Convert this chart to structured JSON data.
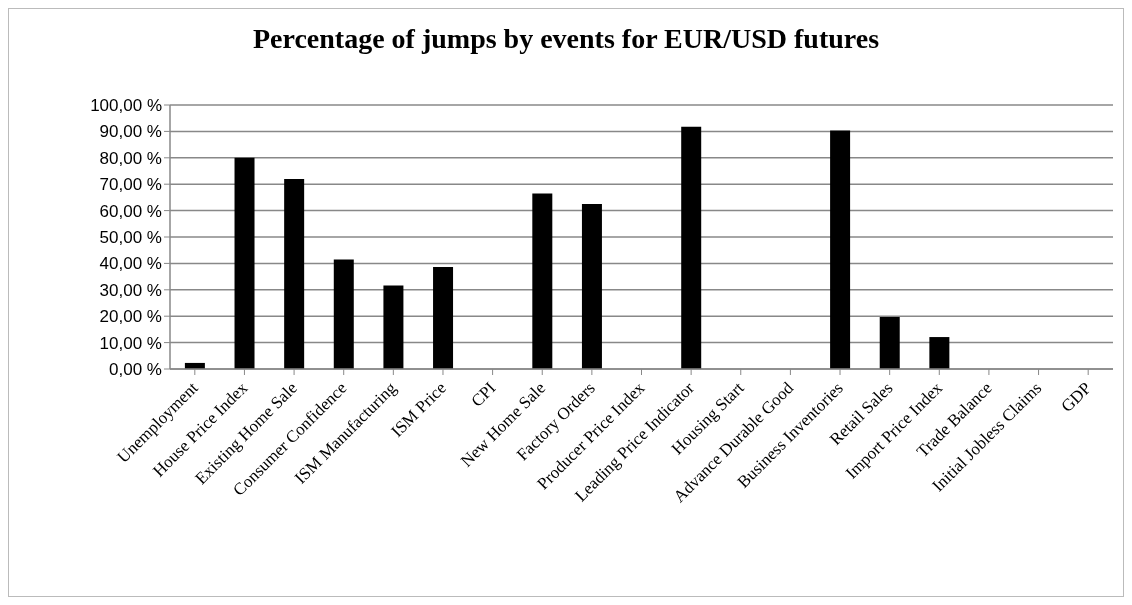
{
  "chart_data": {
    "type": "bar",
    "title": "Percentage of jumps by events for EUR/USD futures",
    "categories": [
      "Unemployment",
      "House Price Index",
      "Existing Home Sale",
      "Consumer Confidence",
      "ISM Manufacturing",
      "ISM Price",
      "CPI",
      "New Home Sale",
      "Factory Orders",
      "Producer Price Index",
      "Leading Price Indicator",
      "Housing Start",
      "Advance Durable Good",
      "Business Inventories",
      "Retail Sales",
      "Import Price Index",
      "Trade Balance",
      "Initial Jobless Claims",
      "GDP"
    ],
    "values": [
      2.3,
      80,
      72,
      41.5,
      31.6,
      38.6,
      0,
      66.5,
      62.5,
      0,
      91.8,
      0,
      0,
      90.3,
      19.7,
      12.1,
      0,
      0,
      0
    ],
    "color": "#000000",
    "ylim": [
      0,
      100
    ],
    "yticks": [
      {
        "value": 0,
        "label": "0,00 %"
      },
      {
        "value": 10,
        "label": "10,00 %"
      },
      {
        "value": 20,
        "label": "20,00 %"
      },
      {
        "value": 30,
        "label": "30,00 %"
      },
      {
        "value": 40,
        "label": "40,00 %"
      },
      {
        "value": 50,
        "label": "50,00 %"
      },
      {
        "value": 60,
        "label": "60,00 %"
      },
      {
        "value": 70,
        "label": "70,00 %"
      },
      {
        "value": 80,
        "label": "80,00 %"
      },
      {
        "value": 90,
        "label": "90,00 %"
      },
      {
        "value": 100,
        "label": "100,00 %"
      }
    ],
    "grid": "y"
  }
}
